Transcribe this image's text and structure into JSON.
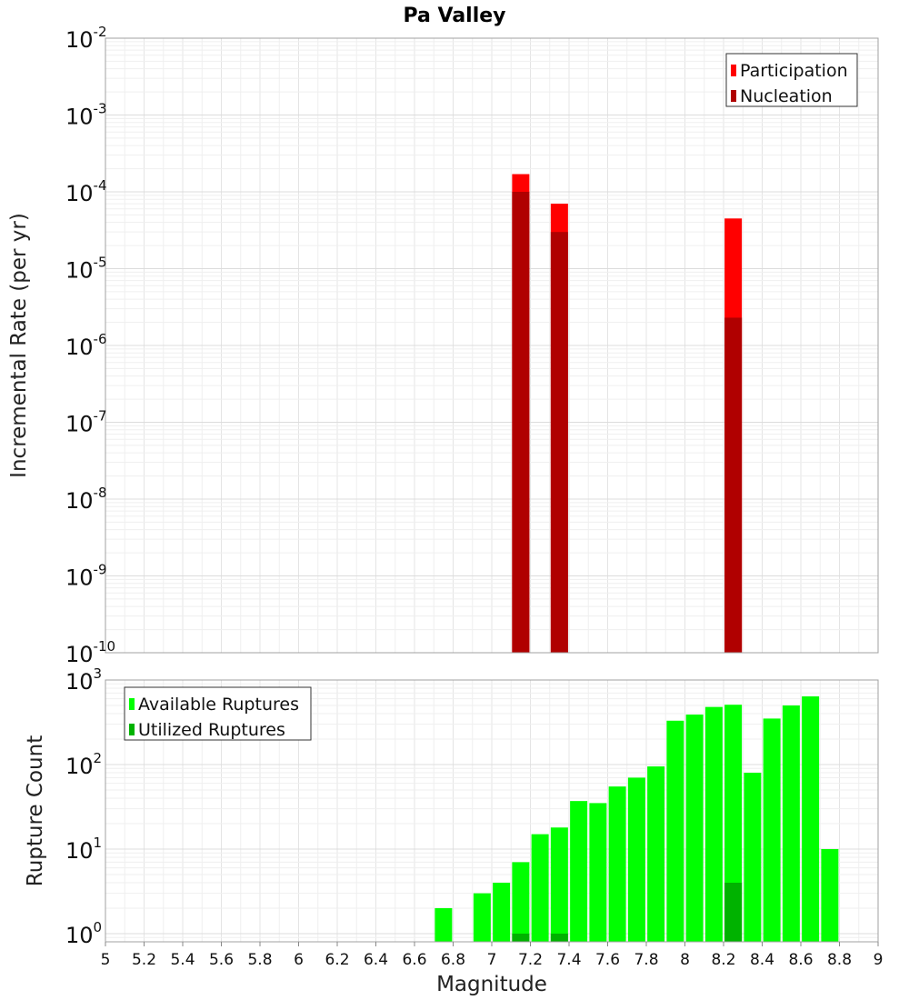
{
  "chart_data": [
    {
      "type": "bar",
      "panel": "top",
      "title": "Pa Valley",
      "xlabel": "",
      "ylabel": "Incremental Rate (per yr)",
      "yscale": "log",
      "ylim": [
        1e-10,
        0.01
      ],
      "xlim": [
        5,
        9
      ],
      "ytick_labels": [
        {
          "base": "10",
          "exp": "-10"
        },
        {
          "base": "10",
          "exp": "-9"
        },
        {
          "base": "10",
          "exp": "-8"
        },
        {
          "base": "10",
          "exp": "-7"
        },
        {
          "base": "10",
          "exp": "-6"
        },
        {
          "base": "10",
          "exp": "-5"
        },
        {
          "base": "10",
          "exp": "-4"
        },
        {
          "base": "10",
          "exp": "-3"
        },
        {
          "base": "10",
          "exp": "-2"
        }
      ],
      "legend_position": "top-right",
      "legend": [
        "Participation",
        "Nucleation"
      ],
      "series": [
        {
          "name": "Participation",
          "color": "#ff0000",
          "points": [
            {
              "x": 7.15,
              "y": 0.00017
            },
            {
              "x": 7.35,
              "y": 7e-05
            },
            {
              "x": 8.25,
              "y": 4.5e-05
            }
          ]
        },
        {
          "name": "Nucleation",
          "color": "#b00000",
          "points": [
            {
              "x": 7.15,
              "y": 0.0001
            },
            {
              "x": 7.35,
              "y": 3e-05
            },
            {
              "x": 8.25,
              "y": 2.3e-06
            }
          ]
        }
      ]
    },
    {
      "type": "bar",
      "panel": "bottom",
      "title": "",
      "xlabel": "Magnitude",
      "ylabel": "Rupture Count",
      "yscale": "log",
      "ylim": [
        0.8,
        1000
      ],
      "xlim": [
        5,
        9
      ],
      "xtick_labels": [
        "5",
        "5.2",
        "5.4",
        "5.6",
        "5.8",
        "6",
        "6.2",
        "6.4",
        "6.6",
        "6.8",
        "7",
        "7.2",
        "7.4",
        "7.6",
        "7.8",
        "8",
        "8.2",
        "8.4",
        "8.6",
        "8.8",
        "9"
      ],
      "ytick_labels": [
        {
          "base": "10",
          "exp": "0"
        },
        {
          "base": "10",
          "exp": "1"
        },
        {
          "base": "10",
          "exp": "2"
        },
        {
          "base": "10",
          "exp": "3"
        }
      ],
      "legend_position": "top-left",
      "legend": [
        "Available Ruptures",
        "Utilized Ruptures"
      ],
      "series": [
        {
          "name": "Available Ruptures",
          "color": "#00ff00",
          "points": [
            {
              "x": 6.75,
              "y": 2
            },
            {
              "x": 6.95,
              "y": 3
            },
            {
              "x": 7.05,
              "y": 4
            },
            {
              "x": 7.15,
              "y": 7
            },
            {
              "x": 7.25,
              "y": 15
            },
            {
              "x": 7.35,
              "y": 18
            },
            {
              "x": 7.45,
              "y": 37
            },
            {
              "x": 7.55,
              "y": 35
            },
            {
              "x": 7.65,
              "y": 55
            },
            {
              "x": 7.75,
              "y": 70
            },
            {
              "x": 7.85,
              "y": 95
            },
            {
              "x": 7.95,
              "y": 330
            },
            {
              "x": 8.05,
              "y": 390
            },
            {
              "x": 8.15,
              "y": 480
            },
            {
              "x": 8.25,
              "y": 510
            },
            {
              "x": 8.35,
              "y": 80
            },
            {
              "x": 8.45,
              "y": 350
            },
            {
              "x": 8.55,
              "y": 500
            },
            {
              "x": 8.65,
              "y": 640
            },
            {
              "x": 8.75,
              "y": 10
            }
          ]
        },
        {
          "name": "Utilized Ruptures",
          "color": "#00b200",
          "points": [
            {
              "x": 7.15,
              "y": 1
            },
            {
              "x": 7.35,
              "y": 1
            },
            {
              "x": 8.25,
              "y": 4
            }
          ]
        }
      ]
    }
  ]
}
